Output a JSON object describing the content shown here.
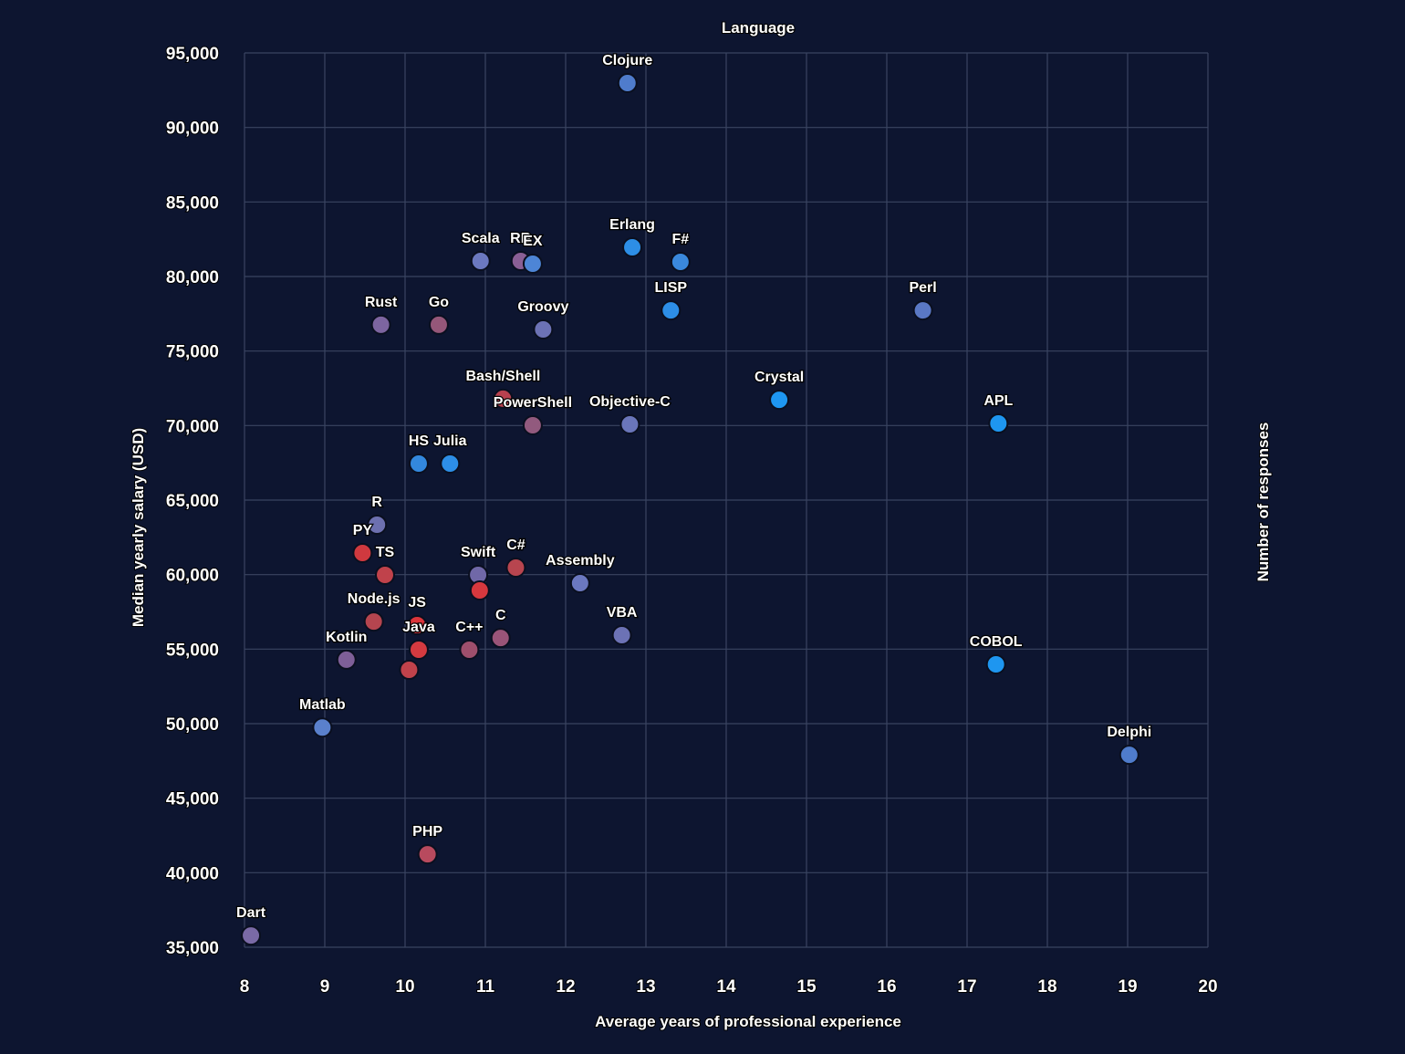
{
  "chart_data": {
    "type": "scatter",
    "title": "",
    "legend_title": "Language",
    "xlabel": "Average years of professional experience",
    "ylabel": "Median yearly salary (USD)",
    "y2label": "Number of responses",
    "xlim": [
      8,
      20
    ],
    "ylim": [
      35000,
      95000
    ],
    "grid": true,
    "x_ticks": [
      8,
      9,
      10,
      11,
      12,
      13,
      14,
      15,
      16,
      17,
      18,
      19,
      20
    ],
    "x_tick_labels": [
      "8",
      "9",
      "10",
      "11",
      "12",
      "13",
      "14",
      "15",
      "16",
      "17",
      "18",
      "19",
      "20"
    ],
    "y_ticks": [
      35000,
      40000,
      45000,
      50000,
      55000,
      60000,
      65000,
      70000,
      75000,
      80000,
      85000,
      90000,
      95000
    ],
    "y_tick_labels": [
      "35,000",
      "40,000",
      "45,000",
      "50,000",
      "55,000",
      "60,000",
      "65,000",
      "70,000",
      "75,000",
      "80,000",
      "85,000",
      "90,000",
      "95,000"
    ],
    "color_scale": {
      "low": "#e8353d",
      "mid": "#7b6aa8",
      "high": "#1e96f0"
    },
    "points": [
      {
        "label": "Clojure",
        "x": 12.77,
        "y": 92980,
        "color": "#4f7ccc"
      },
      {
        "label": "Scala",
        "x": 10.94,
        "y": 81040,
        "color": "#6b78bf"
      },
      {
        "label": "RB",
        "x": 11.44,
        "y": 81040,
        "color": "#8a5f95"
      },
      {
        "label": "EX",
        "x": 11.59,
        "y": 80860,
        "color": "#4d85d6"
      },
      {
        "label": "Erlang",
        "x": 12.83,
        "y": 81960,
        "color": "#2d8ee6"
      },
      {
        "label": "F#",
        "x": 13.43,
        "y": 80980,
        "color": "#3a88dc"
      },
      {
        "label": "LISP",
        "x": 13.31,
        "y": 77730,
        "color": "#2d8ee6"
      },
      {
        "label": "Perl",
        "x": 16.45,
        "y": 77730,
        "color": "#5a78c4"
      },
      {
        "label": "Rust",
        "x": 9.7,
        "y": 76760,
        "color": "#7d65a0"
      },
      {
        "label": "Go",
        "x": 10.42,
        "y": 76760,
        "color": "#955779"
      },
      {
        "label": "Groovy",
        "x": 11.72,
        "y": 76450,
        "color": "#6c72b5"
      },
      {
        "label": "Bash/Shell",
        "x": 11.22,
        "y": 71800,
        "color": "#b8414f"
      },
      {
        "label": "PowerShell",
        "x": 11.59,
        "y": 70020,
        "color": "#925a7e"
      },
      {
        "label": "Objective-C",
        "x": 12.8,
        "y": 70080,
        "color": "#6a76ba"
      },
      {
        "label": "Crystal",
        "x": 14.66,
        "y": 71730,
        "color": "#1e96f0"
      },
      {
        "label": "APL",
        "x": 17.39,
        "y": 70140,
        "color": "#1e96f0"
      },
      {
        "label": "HS",
        "x": 10.17,
        "y": 67450,
        "color": "#3388dd"
      },
      {
        "label": "Julia",
        "x": 10.56,
        "y": 67450,
        "color": "#2d8ee6"
      },
      {
        "label": "R",
        "x": 9.65,
        "y": 63350,
        "color": "#6d70b0"
      },
      {
        "label": "PY",
        "x": 9.47,
        "y": 61450,
        "color": "#d0393f"
      },
      {
        "label": "TS",
        "x": 9.75,
        "y": 59980,
        "color": "#c0424b"
      },
      {
        "label": "Swift",
        "x": 10.91,
        "y": 59980,
        "color": "#7068a8"
      },
      {
        "label": "",
        "x": 10.93,
        "y": 58940,
        "color": "#d6383e"
      },
      {
        "label": "C#",
        "x": 11.38,
        "y": 60470,
        "color": "#b8454f"
      },
      {
        "label": "Assembly",
        "x": 12.18,
        "y": 59430,
        "color": "#6b78bf"
      },
      {
        "label": "Node.js",
        "x": 9.61,
        "y": 56850,
        "color": "#b5454f"
      },
      {
        "label": "JS",
        "x": 10.15,
        "y": 56610,
        "color": "#dc353b"
      },
      {
        "label": "Java",
        "x": 10.17,
        "y": 54960,
        "color": "#d43a40"
      },
      {
        "label": "",
        "x": 10.05,
        "y": 53610,
        "color": "#c0424b"
      },
      {
        "label": "Kotlin",
        "x": 9.27,
        "y": 54290,
        "color": "#7e5f98"
      },
      {
        "label": "C++",
        "x": 10.8,
        "y": 54960,
        "color": "#9e4f6c"
      },
      {
        "label": "C",
        "x": 11.19,
        "y": 55750,
        "color": "#9a5478"
      },
      {
        "label": "VBA",
        "x": 12.7,
        "y": 55940,
        "color": "#6c72b5"
      },
      {
        "label": "COBOL",
        "x": 17.36,
        "y": 53980,
        "color": "#1e96f0"
      },
      {
        "label": "Matlab",
        "x": 8.97,
        "y": 49740,
        "color": "#5a80cc"
      },
      {
        "label": "Delphi",
        "x": 19.02,
        "y": 47910,
        "color": "#4f7ccc"
      },
      {
        "label": "PHP",
        "x": 10.28,
        "y": 41240,
        "color": "#b84a5e"
      },
      {
        "label": "Dart",
        "x": 8.08,
        "y": 35790,
        "color": "#7a6aa6"
      }
    ]
  }
}
